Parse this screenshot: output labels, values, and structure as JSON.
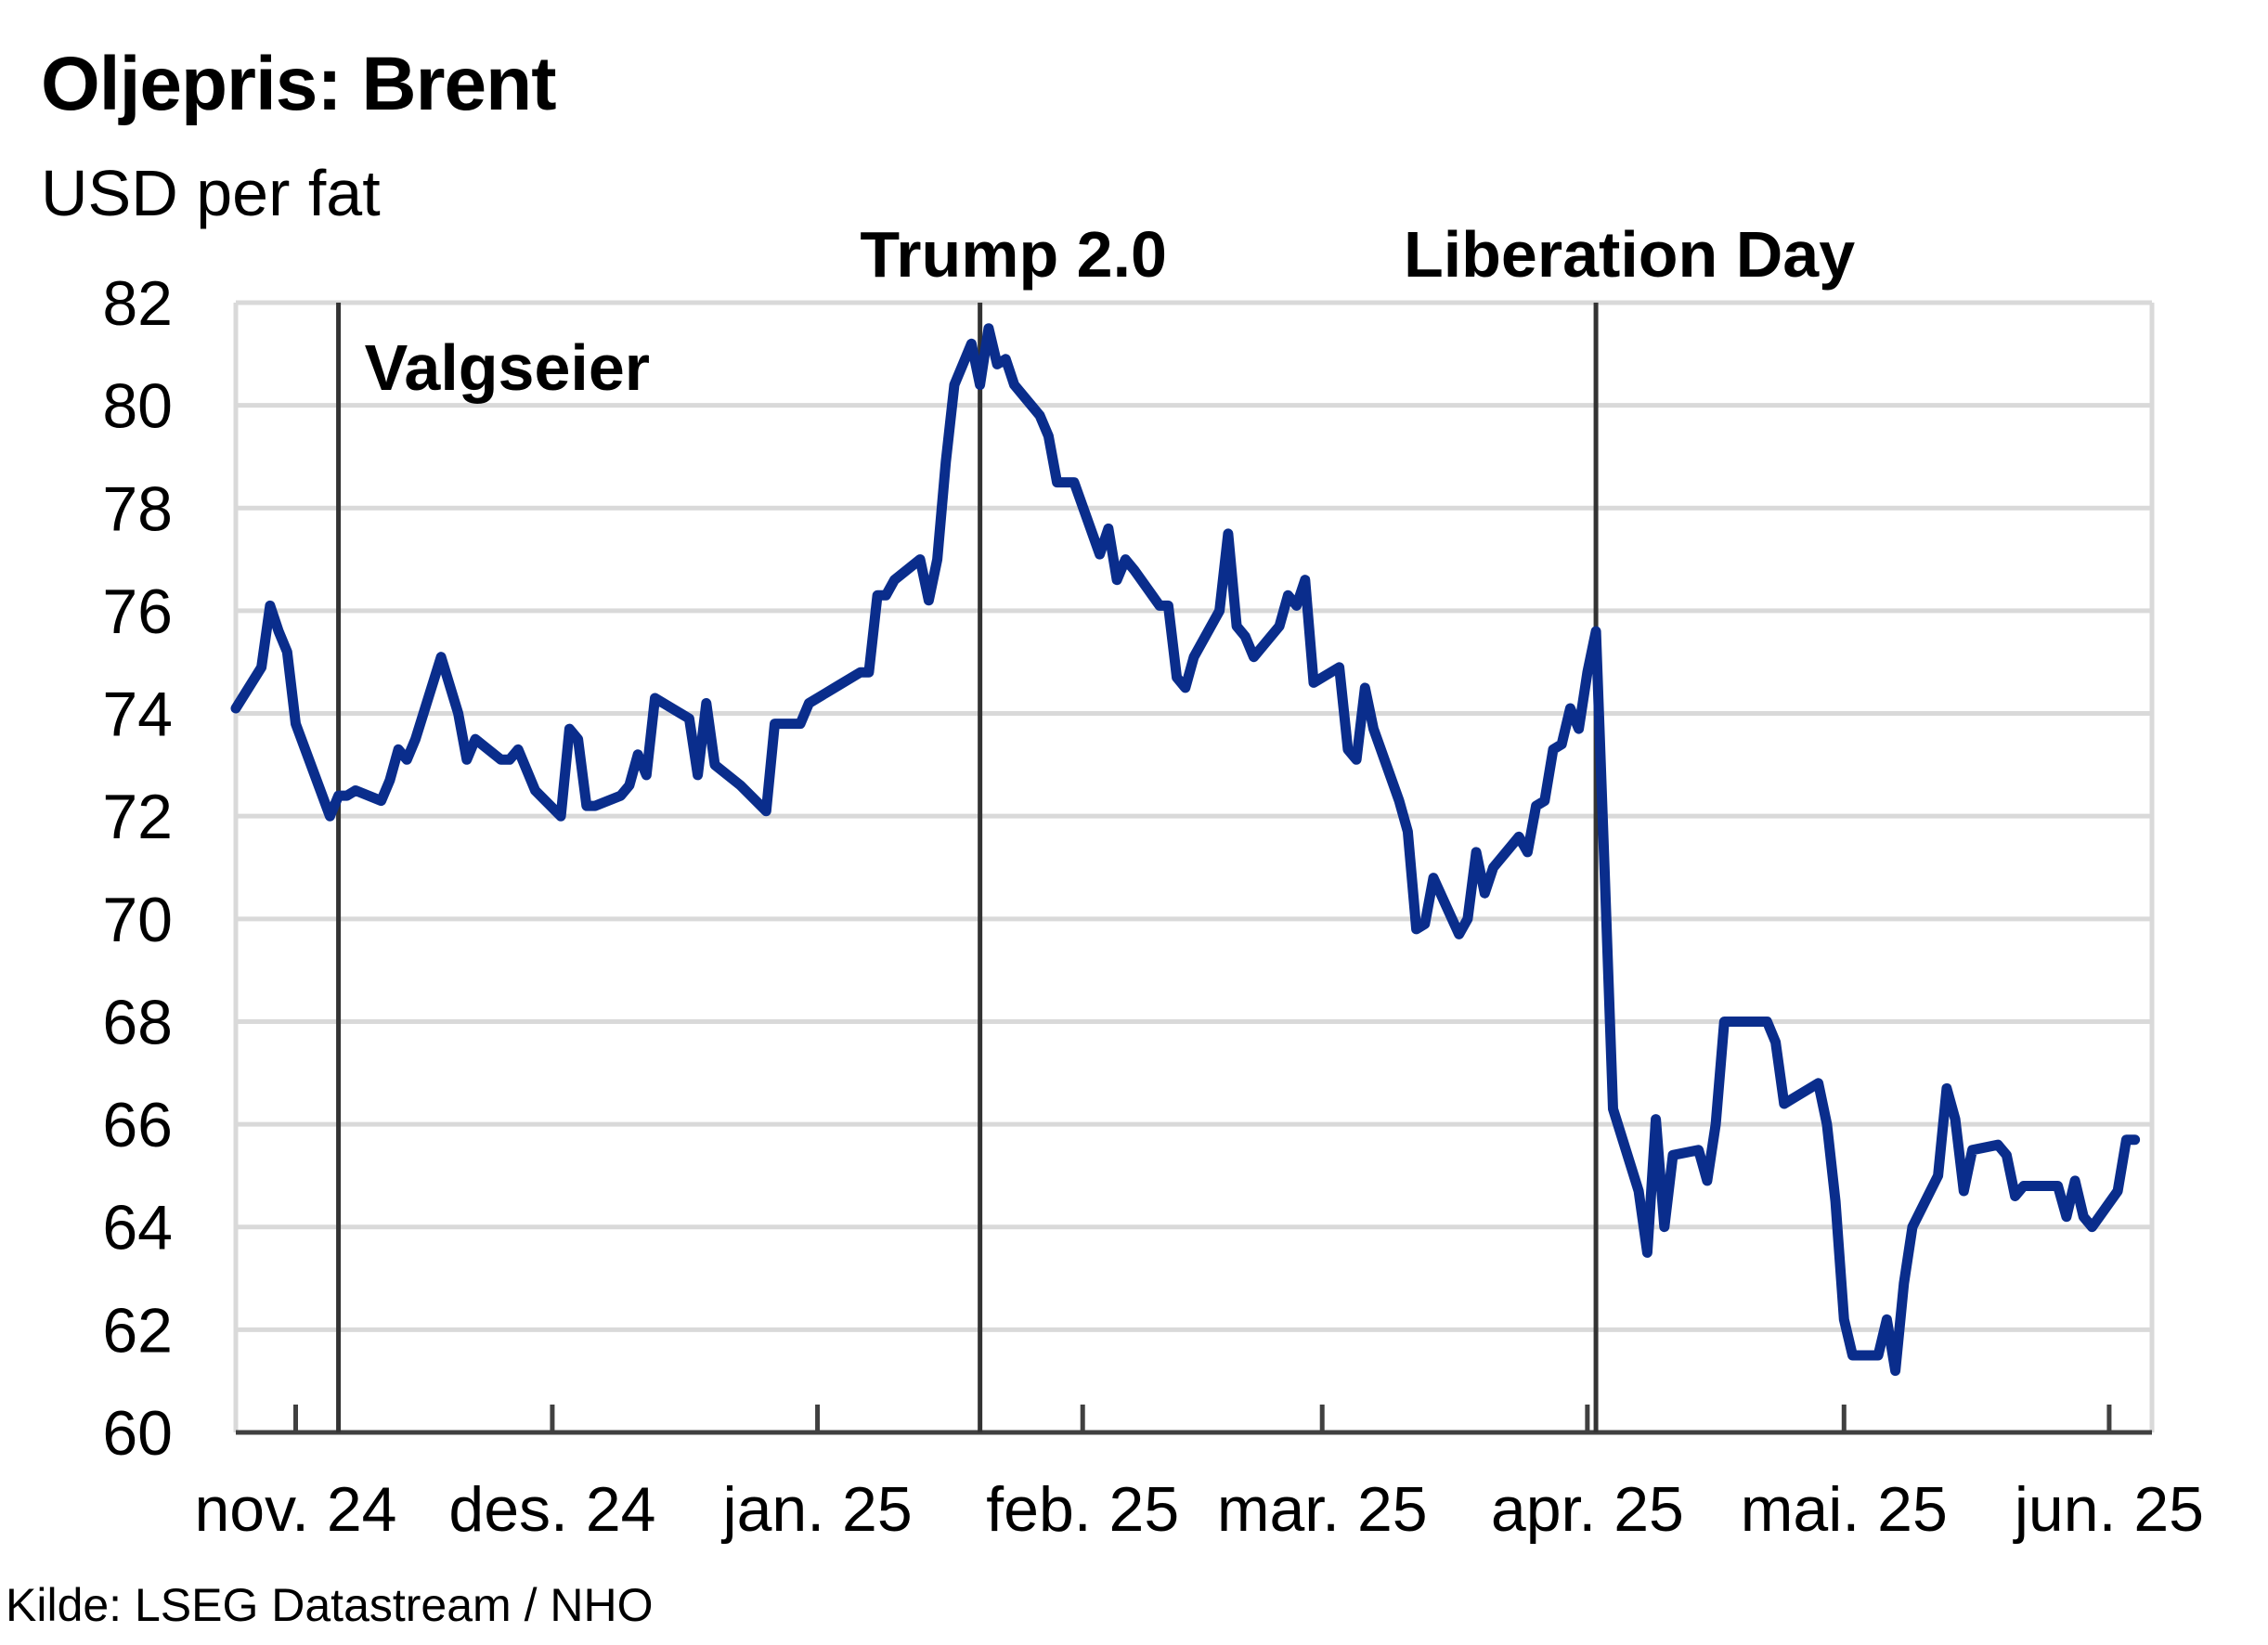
{
  "title": "Oljepris: Brent",
  "subtitle": "USD per fat",
  "source": "Kilde: LSEG Datastream / NHO",
  "chart_data": {
    "type": "line",
    "title": "Oljepris: Brent",
    "ylabel": "USD per fat",
    "xlabel": "",
    "ylim": [
      60,
      82
    ],
    "yticks": [
      60,
      62,
      64,
      66,
      68,
      70,
      72,
      74,
      76,
      78,
      80,
      82
    ],
    "xlim": [
      "2024-10-25",
      "2025-06-06"
    ],
    "x_ticks": [
      {
        "label": "nov. 24",
        "date": "2024-11-01"
      },
      {
        "label": "des. 24",
        "date": "2024-12-01"
      },
      {
        "label": "jan. 25",
        "date": "2025-01-01"
      },
      {
        "label": "feb. 25",
        "date": "2025-02-01"
      },
      {
        "label": "mar. 25",
        "date": "2025-03-01"
      },
      {
        "label": "apr. 25",
        "date": "2025-04-01"
      },
      {
        "label": "mai. 25",
        "date": "2025-05-01"
      },
      {
        "label": "jun. 25",
        "date": "2025-06-01"
      }
    ],
    "grid": true,
    "line_color": "#0a2d8c",
    "annotations": [
      {
        "label": "Valgseier",
        "date": "2024-11-06",
        "label_position": "inside-top"
      },
      {
        "label": "Trump 2.0",
        "date": "2025-01-20",
        "label_position": "above"
      },
      {
        "label": "Liberation Day",
        "date": "2025-04-02",
        "label_position": "above"
      }
    ],
    "series": [
      {
        "points": [
          [
            "2024-10-25",
            74.1
          ],
          [
            "2024-10-28",
            74.9
          ],
          [
            "2024-10-29",
            76.1
          ],
          [
            "2024-10-30",
            75.6
          ],
          [
            "2024-10-31",
            75.2
          ],
          [
            "2024-11-01",
            73.8
          ],
          [
            "2024-11-05",
            72.0
          ],
          [
            "2024-11-06",
            72.4
          ],
          [
            "2024-11-07",
            72.4
          ],
          [
            "2024-11-08",
            72.5
          ],
          [
            "2024-11-11",
            72.3
          ],
          [
            "2024-11-12",
            72.7
          ],
          [
            "2024-11-13",
            73.3
          ],
          [
            "2024-11-14",
            73.1
          ],
          [
            "2024-11-15",
            73.5
          ],
          [
            "2024-11-18",
            75.1
          ],
          [
            "2024-11-20",
            74.0
          ],
          [
            "2024-11-21",
            73.1
          ],
          [
            "2024-11-22",
            73.5
          ],
          [
            "2024-11-25",
            73.1
          ],
          [
            "2024-11-26",
            73.1
          ],
          [
            "2024-11-27",
            73.3
          ],
          [
            "2024-11-29",
            72.5
          ],
          [
            "2024-12-02",
            72.0
          ],
          [
            "2024-12-03",
            73.7
          ],
          [
            "2024-12-04",
            73.5
          ],
          [
            "2024-12-05",
            72.2
          ],
          [
            "2024-12-06",
            72.2
          ],
          [
            "2024-12-09",
            72.4
          ],
          [
            "2024-12-10",
            72.6
          ],
          [
            "2024-12-11",
            73.2
          ],
          [
            "2024-12-12",
            72.8
          ],
          [
            "2024-12-13",
            74.3
          ],
          [
            "2024-12-16",
            74.0
          ],
          [
            "2024-12-17",
            73.9
          ],
          [
            "2024-12-18",
            72.8
          ],
          [
            "2024-12-19",
            74.2
          ],
          [
            "2024-12-20",
            73.0
          ],
          [
            "2024-12-23",
            72.6
          ],
          [
            "2024-12-26",
            72.1
          ],
          [
            "2024-12-27",
            73.8
          ],
          [
            "2024-12-30",
            73.8
          ],
          [
            "2024-12-31",
            74.2
          ],
          [
            "2025-01-02",
            74.4
          ],
          [
            "2025-01-03",
            74.5
          ],
          [
            "2025-01-06",
            74.8
          ],
          [
            "2025-01-07",
            74.8
          ],
          [
            "2025-01-08",
            76.3
          ],
          [
            "2025-01-09",
            76.3
          ],
          [
            "2025-01-10",
            76.6
          ],
          [
            "2025-01-13",
            77.0
          ],
          [
            "2025-01-14",
            76.2
          ],
          [
            "2025-01-15",
            77.0
          ],
          [
            "2025-01-16",
            78.9
          ],
          [
            "2025-01-17",
            80.4
          ],
          [
            "2025-01-19",
            81.2
          ],
          [
            "2025-01-20",
            80.4
          ],
          [
            "2025-01-21",
            81.5
          ],
          [
            "2025-01-22",
            80.8
          ],
          [
            "2025-01-23",
            80.9
          ],
          [
            "2025-01-24",
            80.4
          ],
          [
            "2025-01-27",
            79.8
          ],
          [
            "2025-01-28",
            79.4
          ],
          [
            "2025-01-29",
            78.5
          ],
          [
            "2025-01-31",
            78.5
          ],
          [
            "2025-02-03",
            77.1
          ],
          [
            "2025-02-04",
            77.6
          ],
          [
            "2025-02-05",
            76.6
          ],
          [
            "2025-02-06",
            77.0
          ],
          [
            "2025-02-07",
            76.8
          ],
          [
            "2025-02-10",
            76.1
          ],
          [
            "2025-02-11",
            76.1
          ],
          [
            "2025-02-12",
            74.7
          ],
          [
            "2025-02-13",
            74.5
          ],
          [
            "2025-02-14",
            75.1
          ],
          [
            "2025-02-17",
            76.0
          ],
          [
            "2025-02-18",
            77.5
          ],
          [
            "2025-02-19",
            75.7
          ],
          [
            "2025-02-20",
            75.5
          ],
          [
            "2025-02-21",
            75.1
          ],
          [
            "2025-02-24",
            75.7
          ],
          [
            "2025-02-25",
            76.3
          ],
          [
            "2025-02-26",
            76.1
          ],
          [
            "2025-02-27",
            76.6
          ],
          [
            "2025-02-28",
            74.6
          ],
          [
            "2025-03-03",
            74.9
          ],
          [
            "2025-03-04",
            73.3
          ],
          [
            "2025-03-05",
            73.1
          ],
          [
            "2025-03-06",
            74.5
          ],
          [
            "2025-03-07",
            73.7
          ],
          [
            "2025-03-10",
            72.3
          ],
          [
            "2025-03-11",
            71.7
          ],
          [
            "2025-03-12",
            69.8
          ],
          [
            "2025-03-13",
            69.9
          ],
          [
            "2025-03-14",
            70.8
          ],
          [
            "2025-03-17",
            69.7
          ],
          [
            "2025-03-18",
            70.0
          ],
          [
            "2025-03-19",
            71.3
          ],
          [
            "2025-03-20",
            70.5
          ],
          [
            "2025-03-21",
            71.0
          ],
          [
            "2025-03-24",
            71.6
          ],
          [
            "2025-03-25",
            71.3
          ],
          [
            "2025-03-26",
            72.2
          ],
          [
            "2025-03-27",
            72.3
          ],
          [
            "2025-03-28",
            73.3
          ],
          [
            "2025-03-29",
            73.4
          ],
          [
            "2025-03-30",
            74.1
          ],
          [
            "2025-03-31",
            73.7
          ],
          [
            "2025-04-01",
            74.8
          ],
          [
            "2025-04-02",
            75.6
          ],
          [
            "2025-04-03",
            71.0
          ],
          [
            "2025-04-04",
            66.3
          ],
          [
            "2025-04-07",
            64.7
          ],
          [
            "2025-04-08",
            63.5
          ],
          [
            "2025-04-09",
            66.1
          ],
          [
            "2025-04-10",
            64.0
          ],
          [
            "2025-04-11",
            65.4
          ],
          [
            "2025-04-14",
            65.5
          ],
          [
            "2025-04-15",
            64.9
          ],
          [
            "2025-04-16",
            66.0
          ],
          [
            "2025-04-17",
            68.0
          ],
          [
            "2025-04-22",
            68.0
          ],
          [
            "2025-04-23",
            67.6
          ],
          [
            "2025-04-24",
            66.4
          ],
          [
            "2025-04-25",
            66.5
          ],
          [
            "2025-04-28",
            66.8
          ],
          [
            "2025-04-29",
            66.0
          ],
          [
            "2025-04-30",
            64.5
          ],
          [
            "2025-05-01",
            62.2
          ],
          [
            "2025-05-02",
            61.5
          ],
          [
            "2025-05-05",
            61.5
          ],
          [
            "2025-05-06",
            62.2
          ],
          [
            "2025-05-07",
            61.2
          ],
          [
            "2025-05-08",
            62.9
          ],
          [
            "2025-05-09",
            64.0
          ],
          [
            "2025-05-12",
            65.0
          ],
          [
            "2025-05-13",
            66.7
          ],
          [
            "2025-05-14",
            66.1
          ],
          [
            "2025-05-15",
            64.7
          ],
          [
            "2025-05-16",
            65.5
          ],
          [
            "2025-05-19",
            65.6
          ],
          [
            "2025-05-20",
            65.4
          ],
          [
            "2025-05-21",
            64.6
          ],
          [
            "2025-05-22",
            64.8
          ],
          [
            "2025-05-23",
            64.8
          ],
          [
            "2025-05-26",
            64.8
          ],
          [
            "2025-05-27",
            64.2
          ],
          [
            "2025-05-28",
            64.9
          ],
          [
            "2025-05-29",
            64.2
          ],
          [
            "2025-05-30",
            64.0
          ],
          [
            "2025-06-02",
            64.7
          ],
          [
            "2025-06-03",
            65.7
          ],
          [
            "2025-06-04",
            65.7
          ]
        ]
      }
    ]
  }
}
